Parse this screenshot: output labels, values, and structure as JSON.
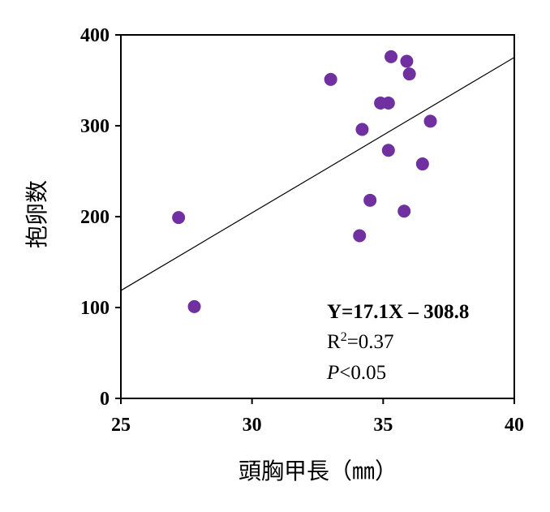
{
  "chart_data": {
    "type": "scatter",
    "title": "",
    "xlabel": "頭胸甲長（㎜）",
    "ylabel": "抱卵数",
    "xlim": [
      25,
      40
    ],
    "ylim": [
      0,
      400
    ],
    "x_ticks": [
      "25",
      "30",
      "35",
      "40"
    ],
    "y_ticks": [
      "0",
      "100",
      "200",
      "300",
      "400"
    ],
    "grid": false,
    "legend": "none",
    "marker_color": "#7030a0",
    "points": [
      {
        "x": 27.2,
        "y": 199
      },
      {
        "x": 27.8,
        "y": 101
      },
      {
        "x": 33.0,
        "y": 351
      },
      {
        "x": 34.1,
        "y": 179
      },
      {
        "x": 34.2,
        "y": 296
      },
      {
        "x": 34.5,
        "y": 218
      },
      {
        "x": 34.9,
        "y": 325
      },
      {
        "x": 35.2,
        "y": 325
      },
      {
        "x": 35.2,
        "y": 273
      },
      {
        "x": 35.3,
        "y": 376
      },
      {
        "x": 35.8,
        "y": 206
      },
      {
        "x": 35.9,
        "y": 371
      },
      {
        "x": 36.0,
        "y": 357
      },
      {
        "x": 36.5,
        "y": 258
      },
      {
        "x": 36.8,
        "y": 305
      }
    ],
    "trendline": {
      "slope": 17.1,
      "intercept": -308.8,
      "color": "#000000"
    },
    "annotations": {
      "equation": "Y=17.1X – 308.8",
      "r_prefix": "R",
      "r_sup": "2",
      "r_value": "=0.37",
      "p_letter": "P",
      "p_rest": "<0.05"
    }
  }
}
